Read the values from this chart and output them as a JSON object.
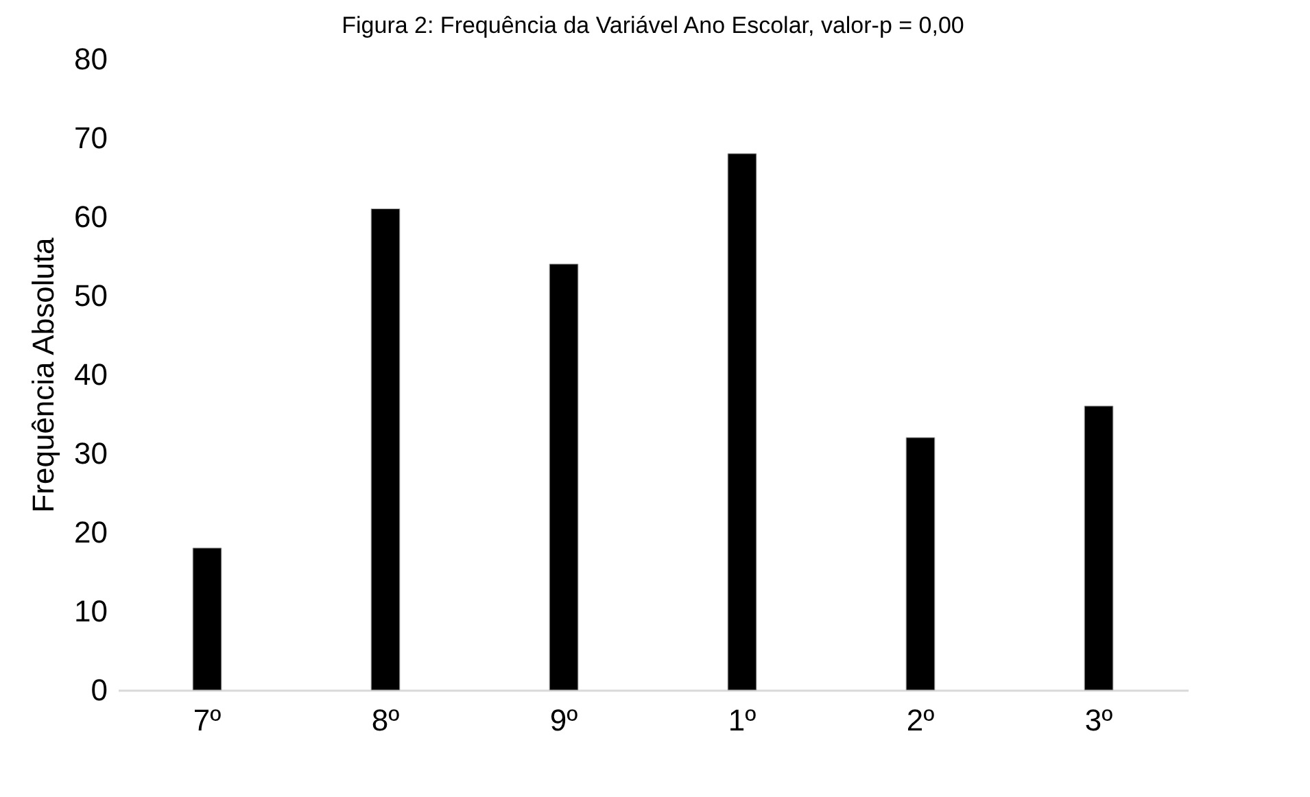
{
  "chart_data": {
    "type": "bar",
    "title": "Figura 2: Frequência da Variável Ano Escolar, valor-p = 0,00",
    "ylabel": "Frequência Absoluta",
    "categories": [
      "7º",
      "8º",
      "9º",
      "1º",
      "2º",
      "3º"
    ],
    "values": [
      18,
      61,
      54,
      68,
      32,
      36
    ],
    "color": "#000000",
    "ylim": [
      0,
      80
    ],
    "yticks": [
      0,
      10,
      20,
      30,
      40,
      50,
      60,
      70,
      80
    ],
    "grid": false
  }
}
